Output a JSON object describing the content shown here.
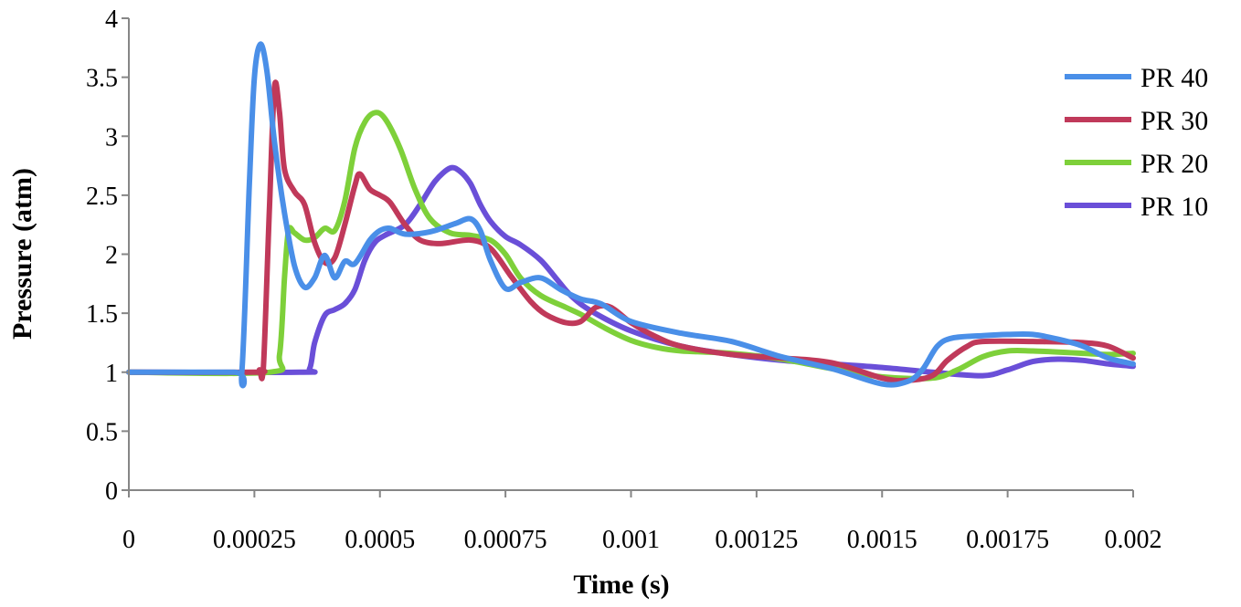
{
  "chart_data": {
    "type": "line",
    "title": "",
    "xlabel": "Time (s)",
    "ylabel": "Pressure (atm)",
    "xlim": [
      0,
      0.002
    ],
    "ylim": [
      0,
      4
    ],
    "x_ticks": [
      0,
      0.00025,
      0.0005,
      0.00075,
      0.001,
      0.00125,
      0.0015,
      0.00175,
      0.002
    ],
    "x_tick_labels": [
      "0",
      "0.00025",
      "0.0005",
      "0.00075",
      "0.001",
      "0.00125",
      "0.0015",
      "0.00175",
      "0.002"
    ],
    "y_ticks": [
      0,
      0.5,
      1,
      1.5,
      2,
      2.5,
      3,
      3.5,
      4
    ],
    "y_tick_labels": [
      "0",
      "0.5",
      "1",
      "1.5",
      "2",
      "2.5",
      "3",
      "3.5",
      "4"
    ],
    "grid": false,
    "legend_position": "top-right",
    "series": [
      {
        "name": "PR 40",
        "color": "#4a8fe8",
        "points": [
          [
            0,
            1
          ],
          [
            0.00021,
            1
          ],
          [
            0.000225,
            1.0
          ],
          [
            0.00024,
            2.6
          ],
          [
            0.00025,
            3.5
          ],
          [
            0.000262,
            3.78
          ],
          [
            0.000275,
            3.55
          ],
          [
            0.00029,
            2.95
          ],
          [
            0.00031,
            2.35
          ],
          [
            0.00033,
            1.9
          ],
          [
            0.00035,
            1.72
          ],
          [
            0.00037,
            1.8
          ],
          [
            0.00039,
            1.99
          ],
          [
            0.00041,
            1.8
          ],
          [
            0.00043,
            1.94
          ],
          [
            0.00045,
            1.92
          ],
          [
            0.00048,
            2.12
          ],
          [
            0.0005,
            2.2
          ],
          [
            0.00052,
            2.22
          ],
          [
            0.00055,
            2.17
          ],
          [
            0.0006,
            2.19
          ],
          [
            0.00065,
            2.26
          ],
          [
            0.00068,
            2.3
          ],
          [
            0.0007,
            2.2
          ],
          [
            0.00072,
            1.95
          ],
          [
            0.00075,
            1.71
          ],
          [
            0.00078,
            1.76
          ],
          [
            0.00082,
            1.8
          ],
          [
            0.00086,
            1.7
          ],
          [
            0.0009,
            1.62
          ],
          [
            0.00094,
            1.58
          ],
          [
            0.001,
            1.43
          ],
          [
            0.0011,
            1.33
          ],
          [
            0.0012,
            1.26
          ],
          [
            0.0013,
            1.13
          ],
          [
            0.0014,
            1.03
          ],
          [
            0.0015,
            0.9
          ],
          [
            0.00155,
            0.92
          ],
          [
            0.00158,
            1.02
          ],
          [
            0.00161,
            1.22
          ],
          [
            0.00164,
            1.29
          ],
          [
            0.0017,
            1.31
          ],
          [
            0.00175,
            1.32
          ],
          [
            0.0018,
            1.32
          ],
          [
            0.00185,
            1.28
          ],
          [
            0.0019,
            1.22
          ],
          [
            0.00195,
            1.12
          ],
          [
            0.002,
            1.07
          ]
        ]
      },
      {
        "name": "PR 30",
        "color": "#c0395a",
        "points": [
          [
            0,
            1
          ],
          [
            0.00025,
            1
          ],
          [
            0.00026,
            1.02
          ],
          [
            0.000268,
            1.05
          ],
          [
            0.00028,
            2.4
          ],
          [
            0.00029,
            3.42
          ],
          [
            0.0003,
            3.2
          ],
          [
            0.00031,
            2.72
          ],
          [
            0.00033,
            2.53
          ],
          [
            0.00035,
            2.42
          ],
          [
            0.00037,
            2.1
          ],
          [
            0.00039,
            1.93
          ],
          [
            0.00041,
            1.97
          ],
          [
            0.00043,
            2.25
          ],
          [
            0.00045,
            2.58
          ],
          [
            0.00046,
            2.68
          ],
          [
            0.00048,
            2.55
          ],
          [
            0.0005,
            2.5
          ],
          [
            0.00052,
            2.44
          ],
          [
            0.00055,
            2.25
          ],
          [
            0.00058,
            2.12
          ],
          [
            0.00062,
            2.09
          ],
          [
            0.00068,
            2.12
          ],
          [
            0.00072,
            2.05
          ],
          [
            0.00076,
            1.82
          ],
          [
            0.0008,
            1.6
          ],
          [
            0.00083,
            1.49
          ],
          [
            0.00087,
            1.42
          ],
          [
            0.0009,
            1.43
          ],
          [
            0.00093,
            1.55
          ],
          [
            0.00096,
            1.55
          ],
          [
            0.001,
            1.42
          ],
          [
            0.00105,
            1.3
          ],
          [
            0.0011,
            1.22
          ],
          [
            0.0012,
            1.15
          ],
          [
            0.0013,
            1.12
          ],
          [
            0.0014,
            1.08
          ],
          [
            0.0015,
            0.95
          ],
          [
            0.00155,
            0.93
          ],
          [
            0.0016,
            0.97
          ],
          [
            0.00163,
            1.1
          ],
          [
            0.00167,
            1.22
          ],
          [
            0.0017,
            1.26
          ],
          [
            0.0018,
            1.26
          ],
          [
            0.0019,
            1.25
          ],
          [
            0.00195,
            1.22
          ],
          [
            0.002,
            1.12
          ]
        ]
      },
      {
        "name": "PR 20",
        "color": "#7ed03a",
        "points": [
          [
            0,
            1
          ],
          [
            0.00028,
            1
          ],
          [
            0.0003,
            1.15
          ],
          [
            0.00031,
            1.8
          ],
          [
            0.000318,
            2.2
          ],
          [
            0.00033,
            2.18
          ],
          [
            0.00035,
            2.12
          ],
          [
            0.00037,
            2.14
          ],
          [
            0.00039,
            2.22
          ],
          [
            0.00041,
            2.2
          ],
          [
            0.00043,
            2.45
          ],
          [
            0.00045,
            2.9
          ],
          [
            0.00047,
            3.12
          ],
          [
            0.00049,
            3.2
          ],
          [
            0.00051,
            3.15
          ],
          [
            0.00054,
            2.9
          ],
          [
            0.00057,
            2.55
          ],
          [
            0.0006,
            2.3
          ],
          [
            0.00064,
            2.18
          ],
          [
            0.00068,
            2.16
          ],
          [
            0.00072,
            2.12
          ],
          [
            0.00075,
            2.0
          ],
          [
            0.00078,
            1.8
          ],
          [
            0.00082,
            1.65
          ],
          [
            0.00087,
            1.55
          ],
          [
            0.0009,
            1.49
          ],
          [
            0.00095,
            1.37
          ],
          [
            0.001,
            1.27
          ],
          [
            0.00105,
            1.21
          ],
          [
            0.0011,
            1.18
          ],
          [
            0.0012,
            1.16
          ],
          [
            0.0013,
            1.11
          ],
          [
            0.0014,
            1.03
          ],
          [
            0.0015,
            0.96
          ],
          [
            0.0016,
            0.95
          ],
          [
            0.00165,
            1.02
          ],
          [
            0.0017,
            1.13
          ],
          [
            0.00175,
            1.18
          ],
          [
            0.0018,
            1.18
          ],
          [
            0.0019,
            1.16
          ],
          [
            0.00195,
            1.15
          ],
          [
            0.002,
            1.16
          ]
        ]
      },
      {
        "name": "PR 10",
        "color": "#6a4fd8",
        "points": [
          [
            0,
            1
          ],
          [
            0.00034,
            1
          ],
          [
            0.00036,
            1.03
          ],
          [
            0.00037,
            1.25
          ],
          [
            0.00039,
            1.48
          ],
          [
            0.00041,
            1.53
          ],
          [
            0.00043,
            1.58
          ],
          [
            0.00045,
            1.7
          ],
          [
            0.00047,
            1.95
          ],
          [
            0.00049,
            2.1
          ],
          [
            0.00051,
            2.16
          ],
          [
            0.00055,
            2.25
          ],
          [
            0.00058,
            2.42
          ],
          [
            0.00061,
            2.62
          ],
          [
            0.00064,
            2.73
          ],
          [
            0.00066,
            2.7
          ],
          [
            0.00068,
            2.6
          ],
          [
            0.0007,
            2.42
          ],
          [
            0.00072,
            2.28
          ],
          [
            0.00075,
            2.15
          ],
          [
            0.00078,
            2.08
          ],
          [
            0.00082,
            1.95
          ],
          [
            0.00085,
            1.8
          ],
          [
            0.00088,
            1.65
          ],
          [
            0.00092,
            1.52
          ],
          [
            0.001,
            1.35
          ],
          [
            0.0011,
            1.22
          ],
          [
            0.0012,
            1.15
          ],
          [
            0.0013,
            1.1
          ],
          [
            0.0014,
            1.07
          ],
          [
            0.0015,
            1.04
          ],
          [
            0.0016,
            1.0
          ],
          [
            0.0017,
            0.97
          ],
          [
            0.00175,
            1.02
          ],
          [
            0.0018,
            1.09
          ],
          [
            0.00185,
            1.11
          ],
          [
            0.0019,
            1.1
          ],
          [
            0.00195,
            1.07
          ],
          [
            0.002,
            1.05
          ]
        ]
      }
    ]
  }
}
